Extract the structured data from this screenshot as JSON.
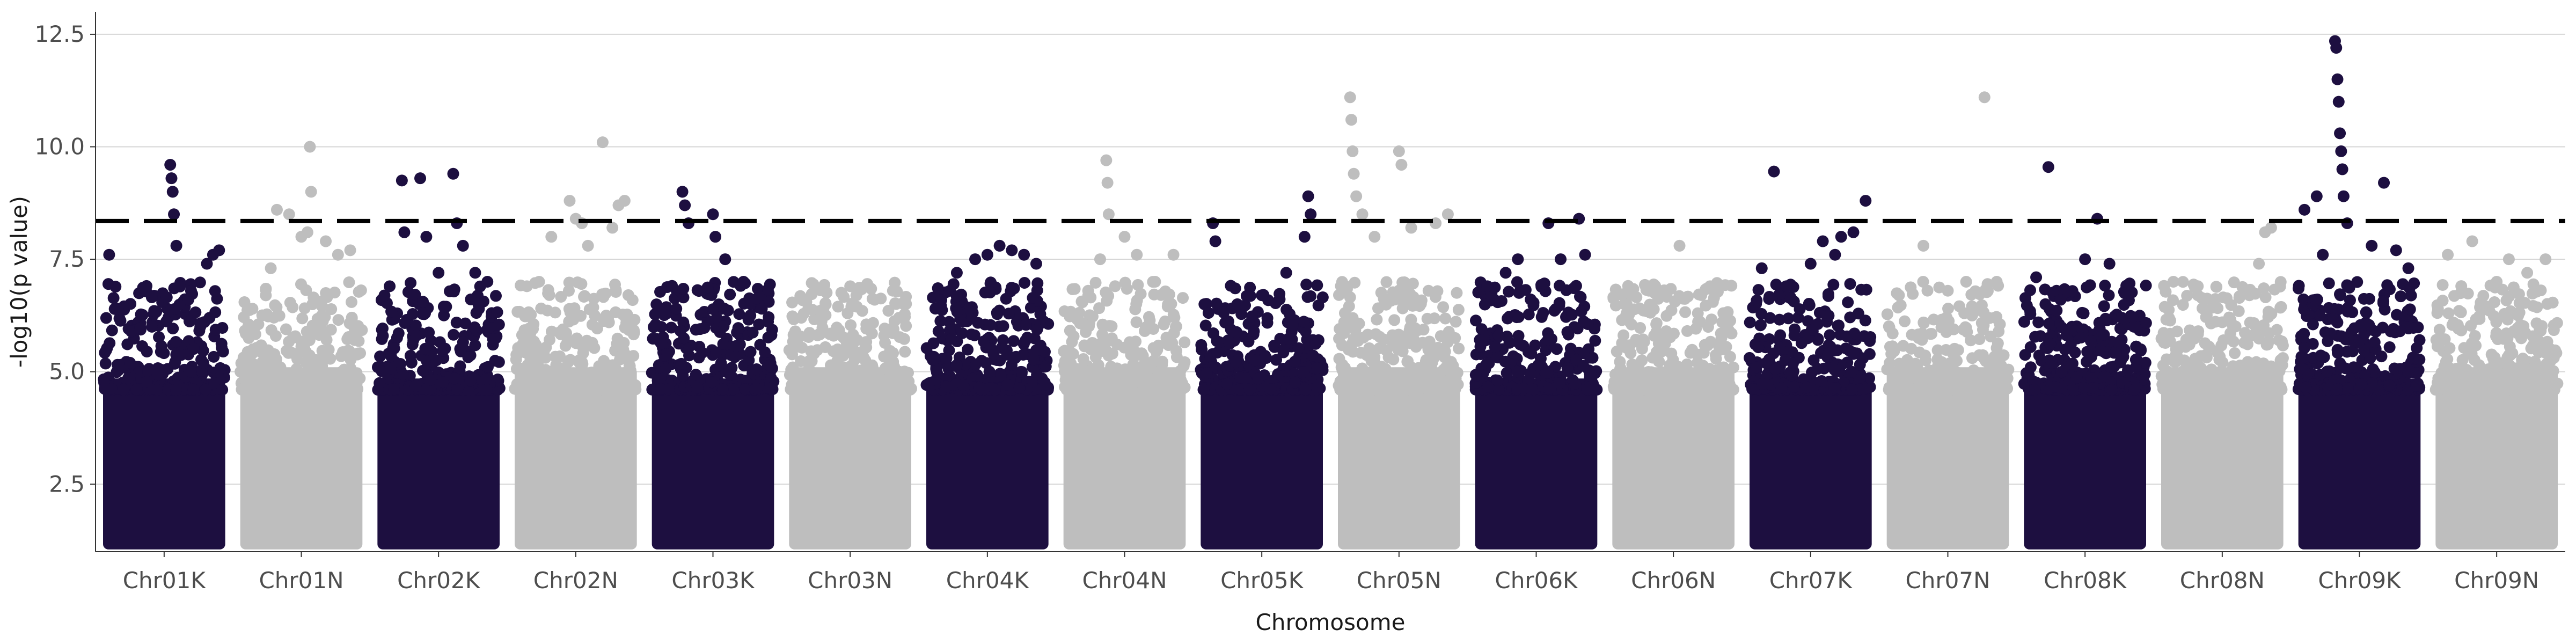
{
  "chart_data": {
    "type": "scatter",
    "title": "",
    "xlabel": "Chromosome",
    "ylabel": "-log10(p value)",
    "ylim": [
      1.0,
      13.0
    ],
    "yticks": [
      2.5,
      5.0,
      7.5,
      10.0,
      12.5
    ],
    "ytick_labels": [
      "2.5",
      "5.0",
      "7.5",
      "10.0",
      "12.5"
    ],
    "grid": "horizontal major",
    "legend": "none",
    "threshold": 8.35,
    "colors": {
      "dark": "#1d0f40",
      "light": "#bebebe",
      "threshold": "#000000",
      "grid": "#d6d6d6"
    },
    "categories": [
      "Chr01K",
      "Chr01N",
      "Chr02K",
      "Chr02N",
      "Chr03K",
      "Chr03N",
      "Chr04K",
      "Chr04N",
      "Chr05K",
      "Chr05N",
      "Chr06K",
      "Chr06N",
      "Chr07K",
      "Chr07N",
      "Chr08K",
      "Chr08N",
      "Chr09K",
      "Chr09N"
    ],
    "series": [
      {
        "category": "Chr01K",
        "color": "dark",
        "peak_points": [
          [
            0.05,
            7.6
          ],
          [
            0.12,
            6.4
          ],
          [
            0.22,
            5.2
          ],
          [
            0.4,
            6.0
          ],
          [
            0.55,
            9.6
          ],
          [
            0.56,
            9.3
          ],
          [
            0.57,
            9.0
          ],
          [
            0.58,
            8.5
          ],
          [
            0.6,
            7.8
          ],
          [
            0.72,
            6.8
          ],
          [
            0.85,
            7.4
          ],
          [
            0.9,
            7.6
          ],
          [
            0.95,
            7.7
          ]
        ]
      },
      {
        "category": "Chr01N",
        "color": "light",
        "peak_points": [
          [
            0.1,
            6.4
          ],
          [
            0.25,
            7.3
          ],
          [
            0.3,
            8.6
          ],
          [
            0.4,
            8.5
          ],
          [
            0.5,
            8.0
          ],
          [
            0.55,
            8.1
          ],
          [
            0.57,
            10.0
          ],
          [
            0.58,
            9.0
          ],
          [
            0.7,
            7.9
          ],
          [
            0.8,
            7.6
          ],
          [
            0.9,
            7.7
          ]
        ]
      },
      {
        "category": "Chr02K",
        "color": "dark",
        "peak_points": [
          [
            0.1,
            6.9
          ],
          [
            0.2,
            9.25
          ],
          [
            0.22,
            8.1
          ],
          [
            0.35,
            9.3
          ],
          [
            0.4,
            8.0
          ],
          [
            0.5,
            7.2
          ],
          [
            0.62,
            9.4
          ],
          [
            0.65,
            8.3
          ],
          [
            0.7,
            7.8
          ],
          [
            0.8,
            7.2
          ],
          [
            0.9,
            7.0
          ]
        ]
      },
      {
        "category": "Chr02N",
        "color": "light",
        "peak_points": [
          [
            0.1,
            6.9
          ],
          [
            0.2,
            7.0
          ],
          [
            0.3,
            8.0
          ],
          [
            0.45,
            8.8
          ],
          [
            0.5,
            8.4
          ],
          [
            0.55,
            8.3
          ],
          [
            0.6,
            7.8
          ],
          [
            0.72,
            10.1
          ],
          [
            0.8,
            8.2
          ],
          [
            0.85,
            8.7
          ],
          [
            0.9,
            8.8
          ]
        ]
      },
      {
        "category": "Chr03K",
        "color": "dark",
        "peak_points": [
          [
            0.1,
            6.3
          ],
          [
            0.2,
            6.4
          ],
          [
            0.25,
            9.0
          ],
          [
            0.27,
            8.7
          ],
          [
            0.3,
            8.3
          ],
          [
            0.5,
            8.5
          ],
          [
            0.52,
            8.0
          ],
          [
            0.6,
            7.5
          ],
          [
            0.75,
            7.0
          ],
          [
            0.9,
            6.4
          ]
        ]
      },
      {
        "category": "Chr03N",
        "color": "light",
        "peak_points": [
          [
            0.1,
            6.2
          ],
          [
            0.3,
            6.5
          ],
          [
            0.5,
            6.9
          ],
          [
            0.7,
            6.6
          ],
          [
            0.85,
            6.8
          ],
          [
            0.9,
            6.2
          ]
        ]
      },
      {
        "category": "Chr04K",
        "color": "dark",
        "peak_points": [
          [
            0.1,
            5.9
          ],
          [
            0.25,
            7.2
          ],
          [
            0.4,
            7.5
          ],
          [
            0.5,
            7.6
          ],
          [
            0.6,
            7.8
          ],
          [
            0.7,
            7.7
          ],
          [
            0.8,
            7.6
          ],
          [
            0.9,
            7.4
          ]
        ]
      },
      {
        "category": "Chr04N",
        "color": "light",
        "peak_points": [
          [
            0.1,
            6.2
          ],
          [
            0.3,
            7.5
          ],
          [
            0.35,
            9.7
          ],
          [
            0.36,
            9.2
          ],
          [
            0.37,
            8.5
          ],
          [
            0.5,
            8.0
          ],
          [
            0.6,
            7.6
          ],
          [
            0.75,
            7.0
          ],
          [
            0.9,
            7.6
          ]
        ]
      },
      {
        "category": "Chr05K",
        "color": "dark",
        "peak_points": [
          [
            0.1,
            8.3
          ],
          [
            0.12,
            7.9
          ],
          [
            0.3,
            6.5
          ],
          [
            0.5,
            6.7
          ],
          [
            0.7,
            7.2
          ],
          [
            0.85,
            8.0
          ],
          [
            0.88,
            8.9
          ],
          [
            0.9,
            8.5
          ]
        ]
      },
      {
        "category": "Chr05N",
        "color": "light",
        "peak_points": [
          [
            0.1,
            11.1
          ],
          [
            0.11,
            10.6
          ],
          [
            0.12,
            9.9
          ],
          [
            0.13,
            9.4
          ],
          [
            0.15,
            8.9
          ],
          [
            0.2,
            8.5
          ],
          [
            0.3,
            8.0
          ],
          [
            0.5,
            9.9
          ],
          [
            0.52,
            9.6
          ],
          [
            0.6,
            8.2
          ],
          [
            0.8,
            8.3
          ],
          [
            0.9,
            8.5
          ]
        ]
      },
      {
        "category": "Chr06K",
        "color": "dark",
        "peak_points": [
          [
            0.1,
            6.9
          ],
          [
            0.25,
            7.2
          ],
          [
            0.35,
            7.5
          ],
          [
            0.6,
            8.3
          ],
          [
            0.7,
            7.5
          ],
          [
            0.85,
            8.4
          ],
          [
            0.9,
            7.6
          ]
        ]
      },
      {
        "category": "Chr06N",
        "color": "light",
        "peak_points": [
          [
            0.1,
            6.5
          ],
          [
            0.3,
            6.8
          ],
          [
            0.55,
            7.8
          ],
          [
            0.7,
            6.3
          ],
          [
            0.8,
            6.9
          ],
          [
            0.9,
            6.1
          ]
        ]
      },
      {
        "category": "Chr07K",
        "color": "dark",
        "peak_points": [
          [
            0.1,
            7.3
          ],
          [
            0.2,
            9.45
          ],
          [
            0.3,
            6.9
          ],
          [
            0.5,
            7.4
          ],
          [
            0.6,
            7.9
          ],
          [
            0.7,
            7.6
          ],
          [
            0.75,
            8.0
          ],
          [
            0.85,
            8.1
          ],
          [
            0.95,
            8.8
          ]
        ]
      },
      {
        "category": "Chr07N",
        "color": "light",
        "peak_points": [
          [
            0.1,
            6.7
          ],
          [
            0.3,
            7.8
          ],
          [
            0.5,
            6.8
          ],
          [
            0.65,
            7.0
          ],
          [
            0.8,
            11.1
          ],
          [
            0.9,
            7.0
          ]
        ]
      },
      {
        "category": "Chr08K",
        "color": "dark",
        "peak_points": [
          [
            0.1,
            7.1
          ],
          [
            0.2,
            9.55
          ],
          [
            0.3,
            6.6
          ],
          [
            0.5,
            7.5
          ],
          [
            0.6,
            8.4
          ],
          [
            0.7,
            7.4
          ],
          [
            0.8,
            6.2
          ],
          [
            0.9,
            6.0
          ]
        ]
      },
      {
        "category": "Chr08N",
        "color": "light",
        "peak_points": [
          [
            0.1,
            7.0
          ],
          [
            0.3,
            6.7
          ],
          [
            0.5,
            6.1
          ],
          [
            0.7,
            6.8
          ],
          [
            0.8,
            7.4
          ],
          [
            0.85,
            8.1
          ],
          [
            0.9,
            8.2
          ]
        ]
      },
      {
        "category": "Chr09K",
        "color": "dark",
        "peak_points": [
          [
            0.05,
            8.6
          ],
          [
            0.15,
            8.9
          ],
          [
            0.2,
            7.6
          ],
          [
            0.3,
            12.35
          ],
          [
            0.31,
            12.2
          ],
          [
            0.32,
            11.5
          ],
          [
            0.33,
            11.0
          ],
          [
            0.34,
            10.3
          ],
          [
            0.35,
            9.9
          ],
          [
            0.36,
            9.5
          ],
          [
            0.37,
            8.9
          ],
          [
            0.4,
            8.3
          ],
          [
            0.6,
            7.8
          ],
          [
            0.7,
            9.2
          ],
          [
            0.8,
            7.7
          ],
          [
            0.9,
            7.3
          ]
        ]
      },
      {
        "category": "Chr09N",
        "color": "light",
        "peak_points": [
          [
            0.1,
            7.6
          ],
          [
            0.3,
            7.9
          ],
          [
            0.5,
            7.0
          ],
          [
            0.6,
            7.5
          ],
          [
            0.75,
            7.2
          ],
          [
            0.9,
            7.5
          ]
        ]
      }
    ]
  }
}
